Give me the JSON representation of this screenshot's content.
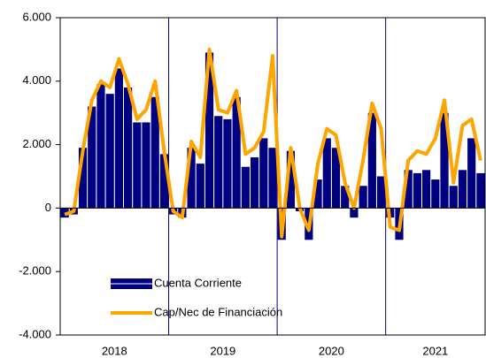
{
  "chart_data": {
    "type": "bar_line",
    "categories": [
      "2018",
      "2018",
      "2018",
      "2018",
      "2018",
      "2018",
      "2018",
      "2018",
      "2018",
      "2018",
      "2018",
      "2018",
      "2019",
      "2019",
      "2019",
      "2019",
      "2019",
      "2019",
      "2019",
      "2019",
      "2019",
      "2019",
      "2019",
      "2019",
      "2020",
      "2020",
      "2020",
      "2020",
      "2020",
      "2020",
      "2020",
      "2020",
      "2020",
      "2020",
      "2020",
      "2020",
      "2021",
      "2021",
      "2021",
      "2021",
      "2021",
      "2021",
      "2021",
      "2021",
      "2021",
      "2021",
      "2021"
    ],
    "series": [
      {
        "name": "Cuenta Corriente",
        "type": "bar",
        "color": "#000080",
        "values": [
          -300,
          -200,
          1900,
          3200,
          3900,
          3600,
          4400,
          3800,
          2700,
          2700,
          3500,
          1700,
          -200,
          -300,
          1900,
          1400,
          4900,
          2900,
          2800,
          3500,
          1300,
          1600,
          2200,
          1900,
          -1000,
          1800,
          -100,
          -1000,
          900,
          2200,
          1900,
          700,
          -300,
          700,
          3000,
          1000,
          -300,
          -1000,
          1200,
          1100,
          1200,
          900,
          3000,
          700,
          1200,
          2200,
          1100
        ]
      },
      {
        "name": "Cap/Nec de Financiación",
        "type": "line",
        "color": "#FFA500",
        "values": [
          -200,
          -100,
          1800,
          3400,
          4000,
          3800,
          4700,
          3900,
          2800,
          3100,
          4000,
          1800,
          -100,
          -300,
          2100,
          1600,
          5000,
          3100,
          3000,
          3700,
          1700,
          1900,
          2400,
          4800,
          -900,
          1900,
          0,
          -700,
          1400,
          2500,
          2300,
          800,
          0,
          1500,
          3300,
          2500,
          -600,
          -700,
          1500,
          1800,
          1700,
          2200,
          3400,
          800,
          2600,
          2800,
          1500
        ]
      }
    ],
    "ylim": [
      -4000,
      6000
    ],
    "yticks": [
      {
        "value": -4000,
        "label": "-4.000"
      },
      {
        "value": -2000,
        "label": "-2.000"
      },
      0,
      {
        "value": 2000,
        "label": "2.000"
      },
      {
        "value": 4000,
        "label": "4.000"
      },
      {
        "value": 6000,
        "label": "6.000"
      }
    ],
    "legend": "lower left"
  }
}
